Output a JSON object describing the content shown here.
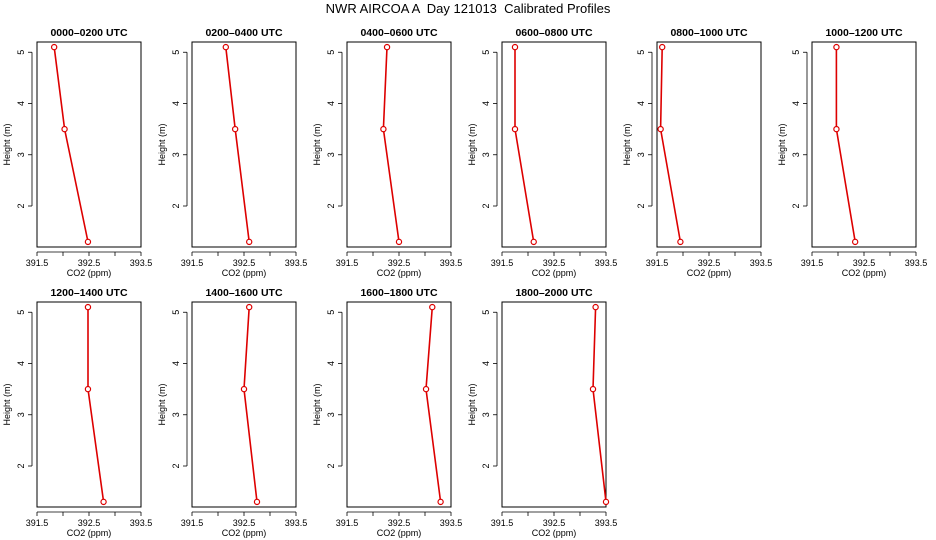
{
  "title": "NWR AIRCOA A  Day 121013  Calibrated Profiles",
  "colors": {
    "series": "#dd0000",
    "axis": "#000000"
  },
  "chart_data": [
    {
      "type": "line",
      "title": "0000–0200 UTC",
      "xlabel": "CO2 (ppm)",
      "ylabel": "Height (m)",
      "xlim": [
        391.5,
        393.5
      ],
      "ylim": [
        1.2,
        5.2
      ],
      "xticks": [
        "391.5",
        "",
        "392.5",
        "",
        "393.5"
      ],
      "yticks": [
        "2",
        "3",
        "4",
        "5"
      ],
      "grid": false,
      "x": [
        391.83,
        392.03,
        392.48
      ],
      "y": [
        5.1,
        3.5,
        1.3
      ]
    },
    {
      "type": "line",
      "title": "0200–0400 UTC",
      "xlabel": "CO2 (ppm)",
      "ylabel": "Height (m)",
      "xlim": [
        391.5,
        393.5
      ],
      "ylim": [
        1.2,
        5.2
      ],
      "xticks": [
        "391.5",
        "",
        "392.5",
        "",
        "393.5"
      ],
      "yticks": [
        "2",
        "3",
        "4",
        "5"
      ],
      "grid": false,
      "x": [
        392.15,
        392.33,
        392.6
      ],
      "y": [
        5.1,
        3.5,
        1.3
      ]
    },
    {
      "type": "line",
      "title": "0400–0600 UTC",
      "xlabel": "CO2 (ppm)",
      "ylabel": "Height (m)",
      "xlim": [
        391.5,
        393.5
      ],
      "ylim": [
        1.2,
        5.2
      ],
      "xticks": [
        "391.5",
        "",
        "392.5",
        "",
        "393.5"
      ],
      "yticks": [
        "2",
        "3",
        "4",
        "5"
      ],
      "grid": false,
      "x": [
        392.27,
        392.2,
        392.5
      ],
      "y": [
        5.1,
        3.5,
        1.3
      ]
    },
    {
      "type": "line",
      "title": "0600–0800 UTC",
      "xlabel": "CO2 (ppm)",
      "ylabel": "Height (m)",
      "xlim": [
        391.5,
        393.5
      ],
      "ylim": [
        1.2,
        5.2
      ],
      "xticks": [
        "391.5",
        "",
        "392.5",
        "",
        "393.5"
      ],
      "yticks": [
        "2",
        "3",
        "4",
        "5"
      ],
      "grid": false,
      "x": [
        391.75,
        391.75,
        392.11
      ],
      "y": [
        5.1,
        3.5,
        1.3
      ]
    },
    {
      "type": "line",
      "title": "0800–1000 UTC",
      "xlabel": "CO2 (ppm)",
      "ylabel": "Height (m)",
      "xlim": [
        391.5,
        393.5
      ],
      "ylim": [
        1.2,
        5.2
      ],
      "xticks": [
        "391.5",
        "",
        "392.5",
        "",
        "393.5"
      ],
      "yticks": [
        "2",
        "3",
        "4",
        "5"
      ],
      "grid": false,
      "x": [
        391.6,
        391.57,
        391.95
      ],
      "y": [
        5.1,
        3.5,
        1.3
      ]
    },
    {
      "type": "line",
      "title": "1000–1200 UTC",
      "xlabel": "CO2 (ppm)",
      "ylabel": "Height (m)",
      "xlim": [
        391.5,
        393.5
      ],
      "ylim": [
        1.2,
        5.2
      ],
      "xticks": [
        "391.5",
        "",
        "392.5",
        "",
        "393.5"
      ],
      "yticks": [
        "2",
        "3",
        "4",
        "5"
      ],
      "grid": false,
      "x": [
        391.97,
        391.97,
        392.33
      ],
      "y": [
        5.1,
        3.5,
        1.3
      ]
    },
    {
      "type": "line",
      "title": "1200–1400 UTC",
      "xlabel": "CO2 (ppm)",
      "ylabel": "Height (m)",
      "xlim": [
        391.5,
        393.5
      ],
      "ylim": [
        1.2,
        5.2
      ],
      "xticks": [
        "391.5",
        "",
        "392.5",
        "",
        "393.5"
      ],
      "yticks": [
        "2",
        "3",
        "4",
        "5"
      ],
      "grid": false,
      "x": [
        392.48,
        392.48,
        392.78
      ],
      "y": [
        5.1,
        3.5,
        1.3
      ]
    },
    {
      "type": "line",
      "title": "1400–1600 UTC",
      "xlabel": "CO2 (ppm)",
      "ylabel": "Height (m)",
      "xlim": [
        391.5,
        393.5
      ],
      "ylim": [
        1.2,
        5.2
      ],
      "xticks": [
        "391.5",
        "",
        "392.5",
        "",
        "393.5"
      ],
      "yticks": [
        "2",
        "3",
        "4",
        "5"
      ],
      "grid": false,
      "x": [
        392.6,
        392.5,
        392.75
      ],
      "y": [
        5.1,
        3.5,
        1.3
      ]
    },
    {
      "type": "line",
      "title": "1600–1800 UTC",
      "xlabel": "CO2 (ppm)",
      "ylabel": "Height (m)",
      "xlim": [
        391.5,
        393.5
      ],
      "ylim": [
        1.2,
        5.2
      ],
      "xticks": [
        "391.5",
        "",
        "392.5",
        "",
        "393.5"
      ],
      "yticks": [
        "2",
        "3",
        "4",
        "5"
      ],
      "grid": false,
      "x": [
        393.14,
        393.02,
        393.3
      ],
      "y": [
        5.1,
        3.5,
        1.3
      ]
    },
    {
      "type": "line",
      "title": "1800–2000 UTC",
      "xlabel": "CO2 (ppm)",
      "ylabel": "Height (m)",
      "xlim": [
        391.5,
        393.5
      ],
      "ylim": [
        1.2,
        5.2
      ],
      "xticks": [
        "391.5",
        "",
        "392.5",
        "",
        "393.5"
      ],
      "yticks": [
        "2",
        "3",
        "4",
        "5"
      ],
      "grid": false,
      "x": [
        393.3,
        393.25,
        393.5
      ],
      "y": [
        5.1,
        3.5,
        1.3
      ]
    }
  ]
}
